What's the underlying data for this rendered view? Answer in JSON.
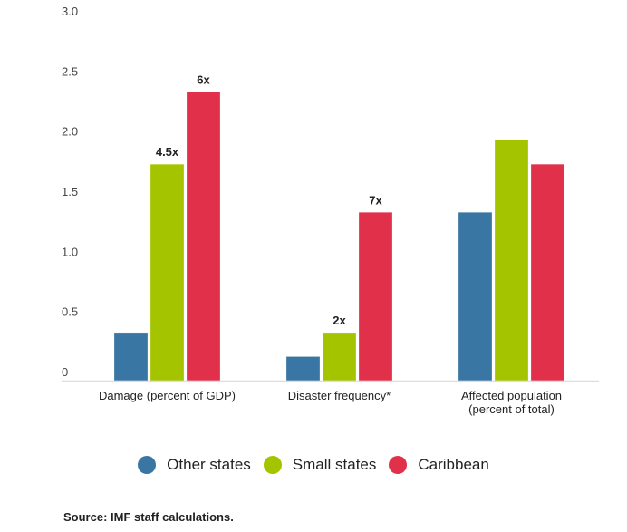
{
  "chart_data": {
    "type": "bar",
    "title": "",
    "xlabel": "",
    "ylabel": "",
    "ylim": [
      0,
      3.0
    ],
    "yticks": [
      {
        "value": 0,
        "label": "0"
      },
      {
        "value": 0.5,
        "label": "0.5"
      },
      {
        "value": 1.0,
        "label": "1.0"
      },
      {
        "value": 1.5,
        "label": "1.5"
      },
      {
        "value": 2.0,
        "label": "2.0"
      },
      {
        "value": 2.5,
        "label": "2.5"
      },
      {
        "value": 3.0,
        "label": "3.0"
      }
    ],
    "grid": false,
    "categories": [
      [
        "Damage (percent of GDP)"
      ],
      [
        "Disaster frequency*"
      ],
      [
        "Affected population",
        "(percent of total)"
      ]
    ],
    "series": [
      {
        "name": "Other states",
        "color": "#3a76a3",
        "values": [
          0.4,
          0.2,
          1.4
        ],
        "labels": [
          "",
          "",
          ""
        ]
      },
      {
        "name": "Small states",
        "color": "#a5c400",
        "values": [
          1.8,
          0.4,
          2.0
        ],
        "labels": [
          "4.5x",
          "2x",
          ""
        ]
      },
      {
        "name": "Caribbean",
        "color": "#e0304a",
        "values": [
          2.4,
          1.4,
          1.8
        ],
        "labels": [
          "6x",
          "7x",
          ""
        ]
      }
    ],
    "legend_position": "bottom-center"
  },
  "source": "Source: IMF staff calculations."
}
